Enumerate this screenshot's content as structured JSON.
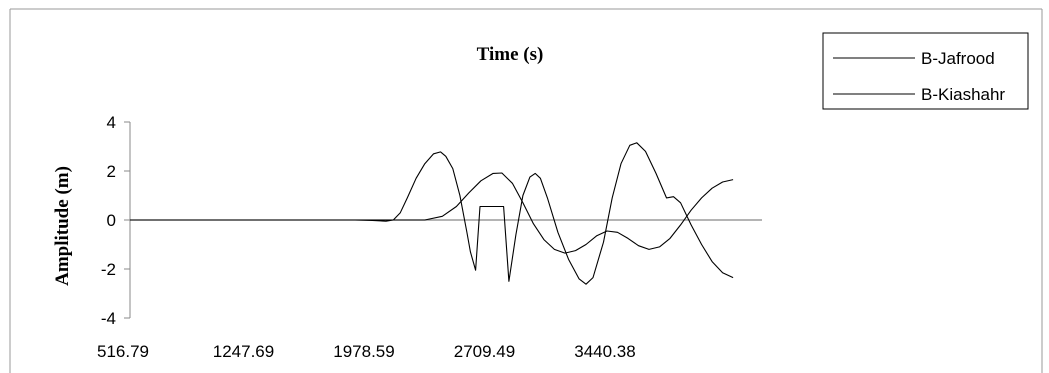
{
  "chart_data": {
    "type": "line",
    "title": "Time (s)",
    "xlabel": "",
    "ylabel": "Amplitude (m)",
    "x_tick_labels": [
      "516.79",
      "1247.69",
      "1978.59",
      "2709.49",
      "3440.38"
    ],
    "xlim": [
      516.79,
      4125
    ],
    "ylim": [
      -4,
      4
    ],
    "y_ticks": [
      -4,
      -2,
      0,
      2,
      4
    ],
    "y_tick_labels": [
      "-4",
      "-2",
      "0",
      "2",
      "4"
    ],
    "grid": false,
    "legend_position": "top-right, outside plot",
    "series": [
      {
        "name": "B-Jafrood",
        "color": "#000000",
        "points": [
          [
            516.79,
            0
          ],
          [
            1000,
            0
          ],
          [
            1500,
            0
          ],
          [
            1800,
            0
          ],
          [
            1900,
            -0.02
          ],
          [
            1978.59,
            -0.05
          ],
          [
            2020,
            0.0
          ],
          [
            2060,
            0.3
          ],
          [
            2100,
            0.9
          ],
          [
            2150,
            1.7
          ],
          [
            2200,
            2.3
          ],
          [
            2250,
            2.7
          ],
          [
            2290,
            2.78
          ],
          [
            2320,
            2.6
          ],
          [
            2360,
            2.1
          ],
          [
            2400,
            1.0
          ],
          [
            2440,
            -0.5
          ],
          [
            2460,
            -1.3
          ],
          [
            2490,
            -2.05
          ],
          [
            2515,
            0.55
          ],
          [
            2650,
            0.55
          ],
          [
            2680,
            -2.5
          ],
          [
            2720,
            -0.6
          ],
          [
            2760,
            1.0
          ],
          [
            2800,
            1.75
          ],
          [
            2830,
            1.9
          ],
          [
            2860,
            1.7
          ],
          [
            2900,
            0.9
          ],
          [
            2960,
            -0.5
          ],
          [
            3020,
            -1.6
          ],
          [
            3080,
            -2.4
          ],
          [
            3120,
            -2.62
          ],
          [
            3160,
            -2.35
          ],
          [
            3220,
            -0.9
          ],
          [
            3270,
            0.9
          ],
          [
            3320,
            2.3
          ],
          [
            3370,
            3.05
          ],
          [
            3410,
            3.15
          ],
          [
            3460,
            2.8
          ],
          [
            3520,
            1.9
          ],
          [
            3580,
            0.9
          ],
          [
            3620,
            0.95
          ],
          [
            3660,
            0.7
          ],
          [
            3720,
            -0.2
          ],
          [
            3780,
            -1.0
          ],
          [
            3840,
            -1.7
          ],
          [
            3900,
            -2.15
          ],
          [
            3960,
            -2.35
          ]
        ]
      },
      {
        "name": "B-Kiashahr",
        "color": "#000000",
        "points": [
          [
            516.79,
            0
          ],
          [
            1500,
            0
          ],
          [
            2000,
            0
          ],
          [
            2200,
            0.0
          ],
          [
            2300,
            0.15
          ],
          [
            2380,
            0.55
          ],
          [
            2450,
            1.1
          ],
          [
            2520,
            1.6
          ],
          [
            2590,
            1.9
          ],
          [
            2640,
            1.92
          ],
          [
            2700,
            1.5
          ],
          [
            2760,
            0.7
          ],
          [
            2820,
            -0.15
          ],
          [
            2880,
            -0.8
          ],
          [
            2940,
            -1.2
          ],
          [
            3000,
            -1.35
          ],
          [
            3060,
            -1.25
          ],
          [
            3120,
            -1.0
          ],
          [
            3180,
            -0.65
          ],
          [
            3240,
            -0.45
          ],
          [
            3300,
            -0.5
          ],
          [
            3360,
            -0.75
          ],
          [
            3420,
            -1.05
          ],
          [
            3480,
            -1.2
          ],
          [
            3540,
            -1.1
          ],
          [
            3600,
            -0.75
          ],
          [
            3660,
            -0.2
          ],
          [
            3720,
            0.4
          ],
          [
            3780,
            0.9
          ],
          [
            3840,
            1.3
          ],
          [
            3900,
            1.55
          ],
          [
            3960,
            1.65
          ]
        ]
      }
    ]
  }
}
